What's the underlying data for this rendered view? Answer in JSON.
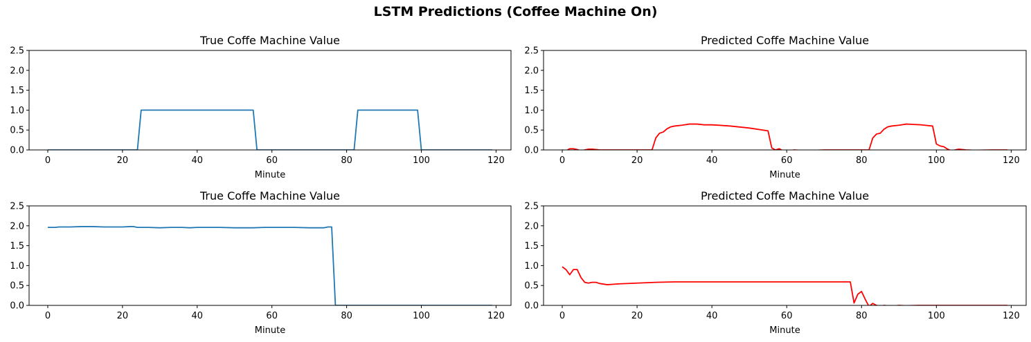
{
  "figure": {
    "suptitle": "LSTM Predictions (Coffee Machine On)"
  },
  "chart_data": [
    {
      "type": "line",
      "title": "True Coffe Machine Value",
      "xlabel": "Minute",
      "ylabel": "",
      "xlim": [
        -5,
        124
      ],
      "ylim": [
        0,
        2.5
      ],
      "xticks": [
        0,
        20,
        40,
        60,
        80,
        100,
        120
      ],
      "yticks": [
        "0.0",
        "0.5",
        "1.0",
        "1.5",
        "2.0",
        "2.5"
      ],
      "grid": false,
      "color": "#1f77b4",
      "series": [
        {
          "x": [
            0,
            24,
            25,
            55,
            56,
            82,
            83,
            99,
            100,
            119
          ],
          "y": [
            0,
            0,
            1,
            1,
            0,
            0,
            1,
            1,
            0,
            0
          ]
        }
      ]
    },
    {
      "type": "line",
      "title": "Predicted Coffe Machine Value",
      "xlabel": "Minute",
      "ylabel": "",
      "xlim": [
        -5,
        124
      ],
      "ylim": [
        0,
        2.5
      ],
      "xticks": [
        0,
        20,
        40,
        60,
        80,
        100,
        120
      ],
      "yticks": [
        "0.0",
        "0.5",
        "1.0",
        "1.5",
        "2.0",
        "2.5"
      ],
      "grid": false,
      "color": "#ff0000",
      "series": [
        {
          "x": [
            0,
            1,
            2,
            3,
            4,
            5,
            6,
            7,
            8,
            9,
            10,
            12,
            15,
            20,
            24,
            25,
            26,
            27,
            28,
            29,
            30,
            32,
            34,
            36,
            38,
            40,
            42,
            45,
            50,
            55,
            56,
            57,
            58,
            59,
            60,
            62,
            65,
            70,
            75,
            80,
            82,
            83,
            84,
            85,
            86,
            87,
            88,
            90,
            92,
            94,
            96,
            99,
            100,
            101,
            102,
            103,
            104,
            105,
            106,
            108,
            110,
            115,
            119
          ],
          "y": [
            0,
            -0.02,
            0.03,
            0.03,
            0.01,
            -0.02,
            0.0,
            0.02,
            0.02,
            0.01,
            0.0,
            0.0,
            0.0,
            0.0,
            0.0,
            0.3,
            0.42,
            0.45,
            0.53,
            0.58,
            0.6,
            0.62,
            0.65,
            0.65,
            0.63,
            0.63,
            0.62,
            0.6,
            0.55,
            0.48,
            0.05,
            0.0,
            0.03,
            -0.02,
            -0.03,
            0.0,
            -0.02,
            0.0,
            0.0,
            0.0,
            0.0,
            0.3,
            0.4,
            0.42,
            0.52,
            0.58,
            0.6,
            0.62,
            0.65,
            0.64,
            0.63,
            0.6,
            0.15,
            0.1,
            0.08,
            0.02,
            -0.02,
            0.0,
            0.02,
            0.0,
            -0.01,
            0.0,
            0.0
          ]
        }
      ]
    },
    {
      "type": "line",
      "title": "True Coffe Machine Value",
      "xlabel": "Minute",
      "ylabel": "",
      "xlim": [
        -5,
        124
      ],
      "ylim": [
        0,
        2.5
      ],
      "xticks": [
        0,
        20,
        40,
        60,
        80,
        100,
        120
      ],
      "yticks": [
        "0.0",
        "0.5",
        "1.0",
        "1.5",
        "2.0",
        "2.5"
      ],
      "grid": false,
      "color": "#1f77b4",
      "series": [
        {
          "x": [
            0,
            2,
            3,
            6,
            9,
            12,
            15,
            18,
            20,
            22,
            23,
            24,
            27,
            30,
            33,
            36,
            38,
            40,
            43,
            46,
            50,
            55,
            58,
            62,
            66,
            70,
            72,
            74,
            75,
            76,
            77,
            78,
            80,
            90,
            100,
            110,
            119
          ],
          "y": [
            1.96,
            1.96,
            1.97,
            1.97,
            1.98,
            1.98,
            1.97,
            1.97,
            1.97,
            1.98,
            1.98,
            1.96,
            1.96,
            1.95,
            1.96,
            1.96,
            1.95,
            1.96,
            1.96,
            1.96,
            1.95,
            1.95,
            1.96,
            1.96,
            1.96,
            1.95,
            1.95,
            1.95,
            1.97,
            1.97,
            0.0,
            0.0,
            0.0,
            0.0,
            0.0,
            0.0,
            0.0
          ]
        }
      ]
    },
    {
      "type": "line",
      "title": "Predicted Coffe Machine Value",
      "xlabel": "Minute",
      "ylabel": "",
      "xlim": [
        -5,
        124
      ],
      "ylim": [
        0,
        2.5
      ],
      "xticks": [
        0,
        20,
        40,
        60,
        80,
        100,
        120
      ],
      "yticks": [
        "0.0",
        "0.5",
        "1.0",
        "1.5",
        "2.0",
        "2.5"
      ],
      "grid": false,
      "color": "#ff0000",
      "series": [
        {
          "x": [
            0,
            1,
            2,
            3,
            4,
            5,
            6,
            7,
            8,
            9,
            10,
            12,
            15,
            20,
            25,
            30,
            35,
            40,
            45,
            50,
            55,
            60,
            65,
            70,
            75,
            77,
            78,
            79,
            80,
            81,
            82,
            83,
            84,
            85,
            86,
            88,
            90,
            92,
            95,
            100,
            110,
            119
          ],
          "y": [
            0.97,
            0.9,
            0.77,
            0.9,
            0.9,
            0.7,
            0.58,
            0.56,
            0.58,
            0.58,
            0.55,
            0.52,
            0.54,
            0.56,
            0.58,
            0.59,
            0.59,
            0.59,
            0.59,
            0.59,
            0.59,
            0.59,
            0.59,
            0.59,
            0.59,
            0.59,
            0.06,
            0.28,
            0.35,
            0.15,
            -0.03,
            0.05,
            0.0,
            -0.03,
            0.0,
            -0.02,
            0.0,
            -0.01,
            0.0,
            0.0,
            0.0,
            0.0
          ]
        }
      ]
    }
  ]
}
